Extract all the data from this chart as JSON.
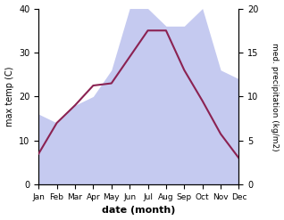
{
  "months": [
    "Jan",
    "Feb",
    "Mar",
    "Apr",
    "May",
    "Jun",
    "Jul",
    "Aug",
    "Sep",
    "Oct",
    "Nov",
    "Dec"
  ],
  "temp": [
    7.0,
    14.0,
    18.0,
    22.5,
    23.0,
    29.0,
    35.0,
    35.0,
    26.0,
    19.0,
    11.5,
    6.0
  ],
  "precip": [
    8.0,
    7.0,
    9.0,
    10.0,
    13.0,
    20.0,
    20.0,
    18.0,
    18.0,
    20.0,
    13.0,
    12.0
  ],
  "temp_color": "#8B2252",
  "precip_fill_color": "#c5caf0",
  "precip_edge_color": "#aab4e8",
  "left_ylim": [
    0,
    40
  ],
  "right_ylim": [
    0,
    20
  ],
  "left_yticks": [
    0,
    10,
    20,
    30,
    40
  ],
  "right_yticks": [
    0,
    5,
    10,
    15,
    20
  ],
  "xlabel": "date (month)",
  "ylabel_left": "max temp (C)",
  "ylabel_right": "med. precipitation (kg/m2)",
  "background_color": "#ffffff"
}
